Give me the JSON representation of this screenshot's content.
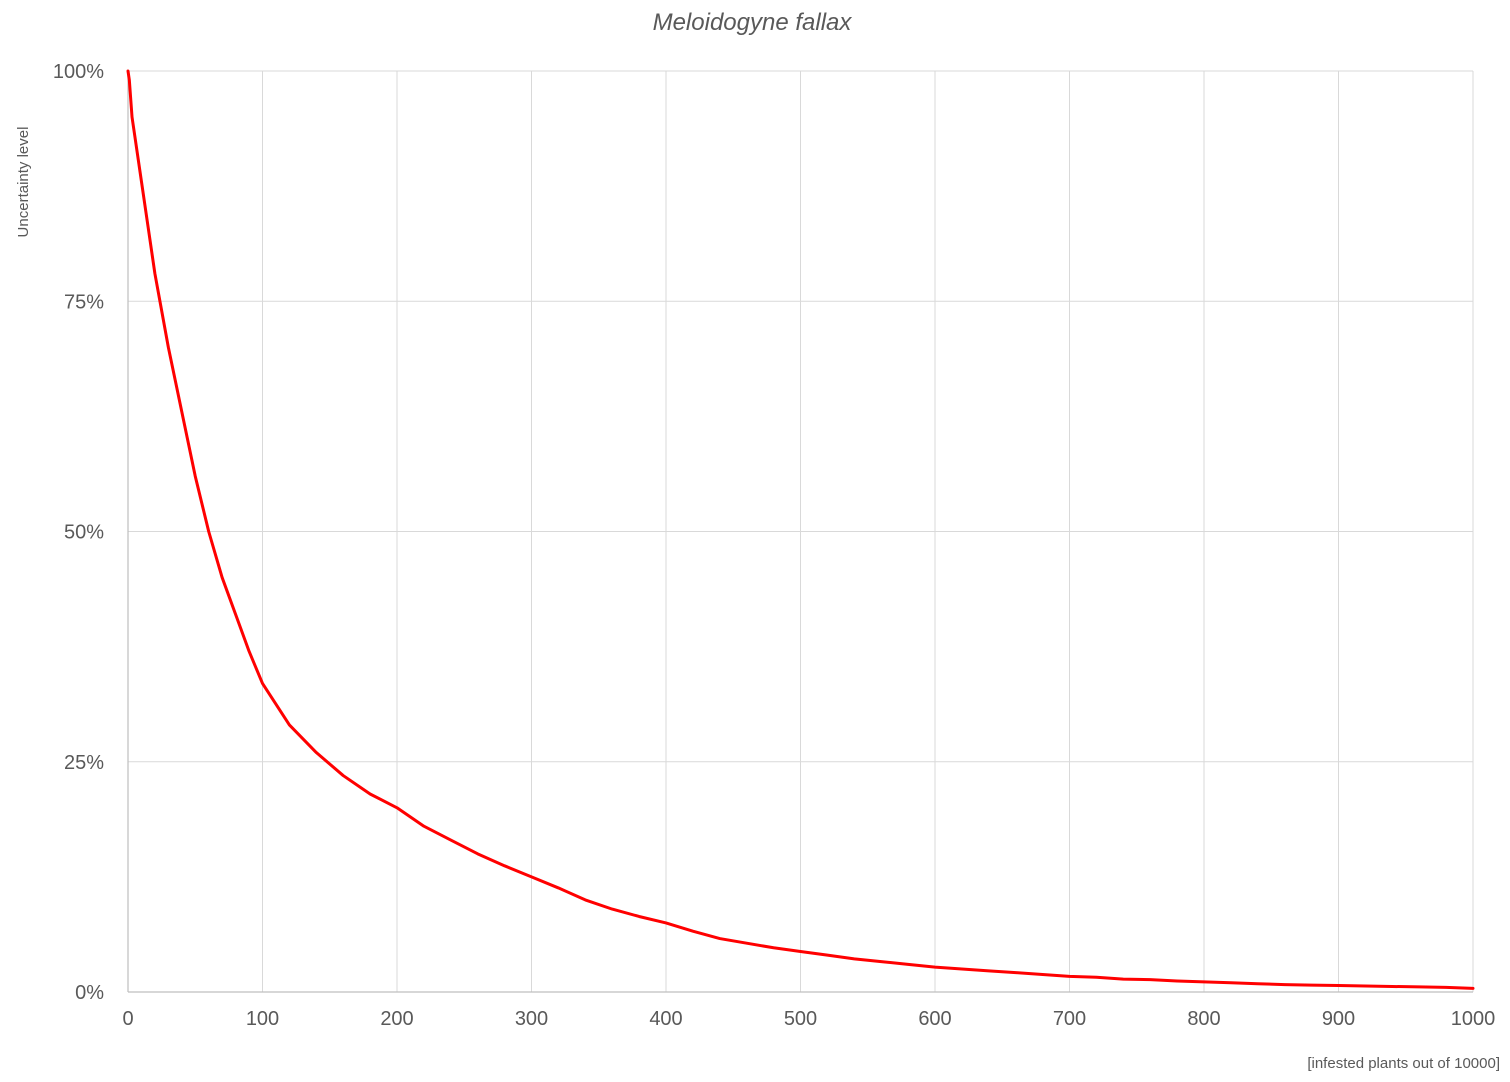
{
  "chart_data": {
    "type": "line",
    "title": "Meloidogyne fallax",
    "xlabel": "[infested plants out of 10000]",
    "ylabel": "Uncertainty level",
    "xlim": [
      0,
      1000
    ],
    "ylim": [
      0,
      1
    ],
    "grid": true,
    "legend": "none",
    "x_ticks": [
      {
        "value": 0,
        "label": "0"
      },
      {
        "value": 100,
        "label": "100"
      },
      {
        "value": 200,
        "label": "200"
      },
      {
        "value": 300,
        "label": "300"
      },
      {
        "value": 400,
        "label": "400"
      },
      {
        "value": 500,
        "label": "500"
      },
      {
        "value": 600,
        "label": "600"
      },
      {
        "value": 700,
        "label": "700"
      },
      {
        "value": 800,
        "label": "800"
      },
      {
        "value": 900,
        "label": "900"
      },
      {
        "value": 1000,
        "label": "1000"
      }
    ],
    "y_ticks": [
      {
        "value": 0,
        "label": "0%"
      },
      {
        "value": 0.25,
        "label": "25%"
      },
      {
        "value": 0.5,
        "label": "50%"
      },
      {
        "value": 0.75,
        "label": "75%"
      },
      {
        "value": 1,
        "label": "100%"
      }
    ],
    "series": [
      {
        "color": "#ff0000",
        "x": [
          0,
          1,
          3,
          5,
          10,
          15,
          20,
          30,
          40,
          50,
          60,
          70,
          80,
          90,
          100,
          120,
          140,
          160,
          180,
          200,
          220,
          240,
          260,
          280,
          300,
          320,
          340,
          360,
          380,
          400,
          420,
          440,
          460,
          480,
          500,
          520,
          540,
          560,
          580,
          600,
          620,
          640,
          660,
          680,
          700,
          720,
          740,
          760,
          780,
          800,
          820,
          840,
          860,
          880,
          900,
          920,
          940,
          960,
          980,
          1000
        ],
        "y": [
          1.0,
          0.99,
          0.95,
          0.93,
          0.88,
          0.83,
          0.78,
          0.7,
          0.63,
          0.56,
          0.5,
          0.45,
          0.41,
          0.37,
          0.335,
          0.29,
          0.26,
          0.235,
          0.215,
          0.2,
          0.18,
          0.165,
          0.15,
          0.137,
          0.125,
          0.113,
          0.1,
          0.09,
          0.082,
          0.075,
          0.066,
          0.058,
          0.053,
          0.048,
          0.044,
          0.04,
          0.036,
          0.033,
          0.03,
          0.027,
          0.025,
          0.023,
          0.021,
          0.019,
          0.017,
          0.016,
          0.014,
          0.0135,
          0.012,
          0.011,
          0.01,
          0.009,
          0.008,
          0.0075,
          0.007,
          0.0065,
          0.006,
          0.0055,
          0.005,
          0.004
        ]
      }
    ]
  }
}
